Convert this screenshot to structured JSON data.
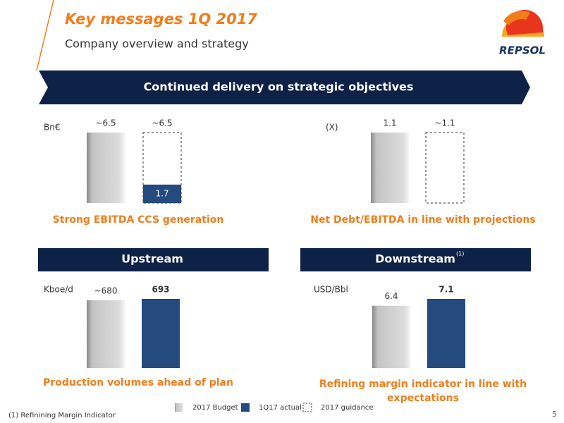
{
  "header": {
    "title": "Key messages 1Q 2017",
    "subtitle": "Company overview and strategy",
    "logo": "REPSOL"
  },
  "banner": "Continued delivery on strategic objectives",
  "sections": [
    {
      "text": "Upstream"
    },
    {
      "text": "Downstream",
      "note": "(1)"
    }
  ],
  "chart_data": [
    {
      "type": "bar",
      "unit": "Bn€",
      "caption": "Strong EBITDA CCS generation",
      "overlay": true,
      "values": [
        6.5,
        1.7,
        6.5
      ],
      "value_labels": [
        "~6.5",
        "1.7",
        "~6.5"
      ]
    },
    {
      "type": "bar",
      "unit": "(X)",
      "caption": "Net Debt/EBITDA in line with projections",
      "overlay": false,
      "values": [
        1.1,
        null,
        1.1
      ],
      "value_labels": [
        "1.1",
        null,
        "~1.1"
      ]
    },
    {
      "type": "bar",
      "unit": "Kboe/d",
      "caption": "Production volumes ahead of plan",
      "overlay": false,
      "values": [
        680,
        693,
        null
      ],
      "value_labels": [
        "~680",
        "693",
        null
      ]
    },
    {
      "type": "bar",
      "unit": "USD/Bbl",
      "caption": "Refining margin indicator in line with expectations",
      "overlay": false,
      "values": [
        6.4,
        7.1,
        null
      ],
      "value_labels": [
        "6.4",
        "7.1",
        null
      ]
    }
  ],
  "legend": [
    {
      "name": "2017 Budget",
      "color": "#c4c4c4"
    },
    {
      "name": "1Q17 actual",
      "color": "#244a7e"
    },
    {
      "name": "2017 guidance",
      "color": "#ffffff"
    }
  ],
  "footnote": "(1) Refinining Margin Indicator",
  "page_number": 5
}
